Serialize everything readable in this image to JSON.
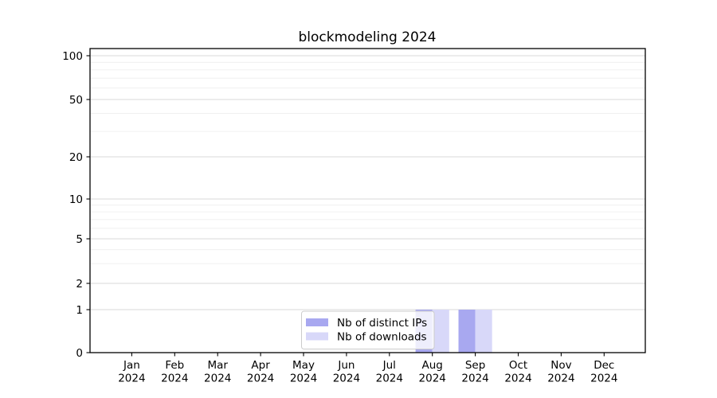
{
  "chart_data": {
    "type": "bar",
    "title": "blockmodeling 2024",
    "x_tick_months": [
      "Jan",
      "Feb",
      "Mar",
      "Apr",
      "May",
      "Jun",
      "Jul",
      "Aug",
      "Sep",
      "Oct",
      "Nov",
      "Dec"
    ],
    "x_tick_year": "2024",
    "series": [
      {
        "name": "Nb of distinct IPs",
        "color": "#a8a8f0",
        "values": [
          0,
          0,
          0,
          0,
          0,
          0,
          0,
          1,
          1,
          0,
          0,
          0
        ]
      },
      {
        "name": "Nb of downloads",
        "color": "#d8d8f9",
        "values": [
          0,
          0,
          0,
          0,
          0,
          0,
          0,
          1,
          1,
          0,
          0,
          0
        ]
      }
    ],
    "y_axis": {
      "scale": "symlog",
      "major_ticks": [
        0,
        1,
        2,
        5,
        10,
        20,
        50,
        100
      ],
      "minor_ticks": [
        3,
        4,
        6,
        7,
        8,
        9,
        30,
        40,
        60,
        70,
        80,
        90
      ],
      "ylim": [
        0,
        110
      ]
    },
    "legend": {
      "position": "lower-center",
      "entries": [
        "Nb of distinct IPs",
        "Nb of downloads"
      ]
    },
    "grid": {
      "horizontal": true,
      "vertical": false
    }
  },
  "colors": {
    "background": "#ffffff",
    "axis": "#000000",
    "grid_major": "#d9d9d9",
    "grid_minor": "#f0f0f0",
    "legend_border": "#cccccc",
    "legend_fill": "rgba(255,255,255,0.8)",
    "bar_distinct_ips": "#a8a8f0",
    "bar_downloads": "#d8d8f9"
  }
}
